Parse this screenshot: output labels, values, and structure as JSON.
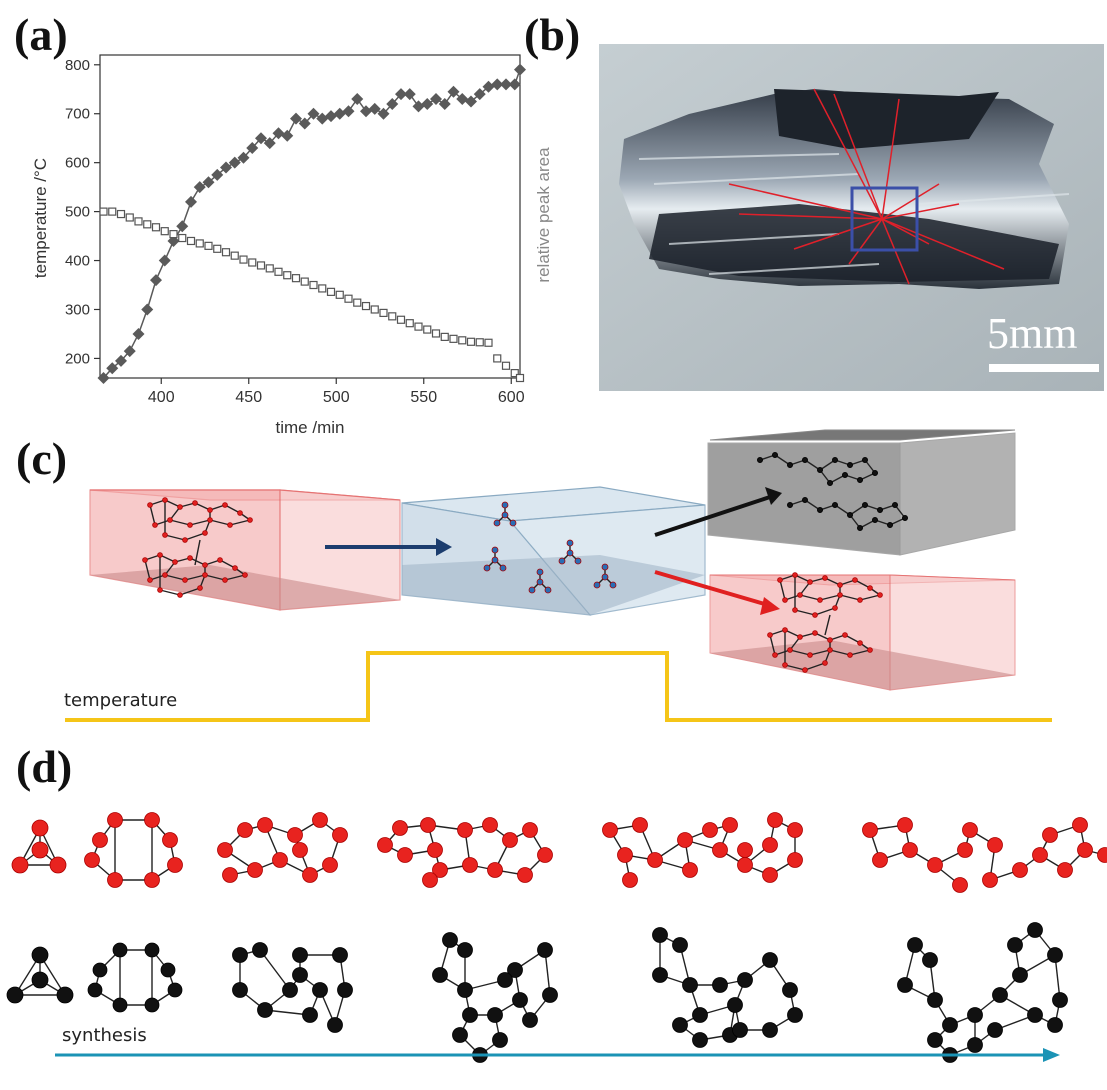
{
  "labels": {
    "a": "(a)",
    "b": "(b)",
    "c": "(c)",
    "d": "(d)"
  },
  "chart_data": {
    "type": "scatter",
    "xlabel": "time /min",
    "ylabel": "temperature /°C",
    "y2label": "relative peak area",
    "xlim": [
      365,
      605
    ],
    "ylim": [
      160,
      820
    ],
    "xticks": [
      "400",
      "450",
      "500",
      "550",
      "600"
    ],
    "yticks": [
      "200",
      "300",
      "400",
      "500",
      "600",
      "700",
      "800"
    ],
    "xtick_values": [
      400,
      450,
      500,
      550,
      600
    ],
    "ytick_values": [
      200,
      300,
      400,
      500,
      600,
      700,
      800
    ],
    "series": [
      {
        "marker": "filled-diamond",
        "color": "#5a5a5a",
        "x": [
          367,
          372,
          377,
          382,
          387,
          392,
          397,
          402,
          407,
          412,
          417,
          422,
          427,
          432,
          437,
          442,
          447,
          452,
          457,
          462,
          467,
          472,
          477,
          482,
          487,
          492,
          497,
          502,
          507,
          512,
          517,
          522,
          527,
          532,
          537,
          542,
          547,
          552,
          557,
          562,
          567,
          572,
          577,
          582,
          587,
          592,
          597,
          602,
          605
        ],
        "y": [
          160,
          180,
          195,
          215,
          250,
          300,
          360,
          400,
          440,
          470,
          520,
          550,
          560,
          575,
          590,
          600,
          610,
          630,
          650,
          640,
          660,
          655,
          690,
          680,
          700,
          690,
          695,
          700,
          705,
          730,
          705,
          710,
          700,
          720,
          740,
          740,
          715,
          720,
          730,
          720,
          745,
          730,
          725,
          740,
          755,
          760,
          760,
          760,
          790
        ]
      },
      {
        "marker": "open-square",
        "color": "#555555",
        "x": [
          367,
          372,
          377,
          382,
          387,
          392,
          397,
          402,
          407,
          412,
          417,
          422,
          427,
          432,
          437,
          442,
          447,
          452,
          457,
          462,
          467,
          472,
          477,
          482,
          487,
          492,
          497,
          502,
          507,
          512,
          517,
          522,
          527,
          532,
          537,
          542,
          547,
          552,
          557,
          562,
          567,
          572,
          577,
          582,
          587,
          592,
          597,
          602,
          605
        ],
        "y": [
          500,
          500,
          495,
          488,
          480,
          474,
          468,
          460,
          454,
          446,
          440,
          435,
          430,
          424,
          417,
          410,
          402,
          396,
          390,
          384,
          377,
          370,
          364,
          357,
          350,
          343,
          336,
          330,
          322,
          314,
          307,
          300,
          293,
          286,
          279,
          272,
          265,
          259,
          251,
          244,
          240,
          237,
          234,
          233,
          232,
          200,
          185,
          170,
          160
        ]
      }
    ]
  },
  "photo": {
    "scale_label": "5mm",
    "highlight_color": "#3b4fa8",
    "ray_color": "#e0202a"
  },
  "schematic": {
    "temperature_label": "temperature",
    "line_color": "#f5c518"
  },
  "clusters": {
    "synthesis_label": "synthesis",
    "red": "#e8231f",
    "black": "#111111",
    "arrow_color": "#1b93b5"
  }
}
